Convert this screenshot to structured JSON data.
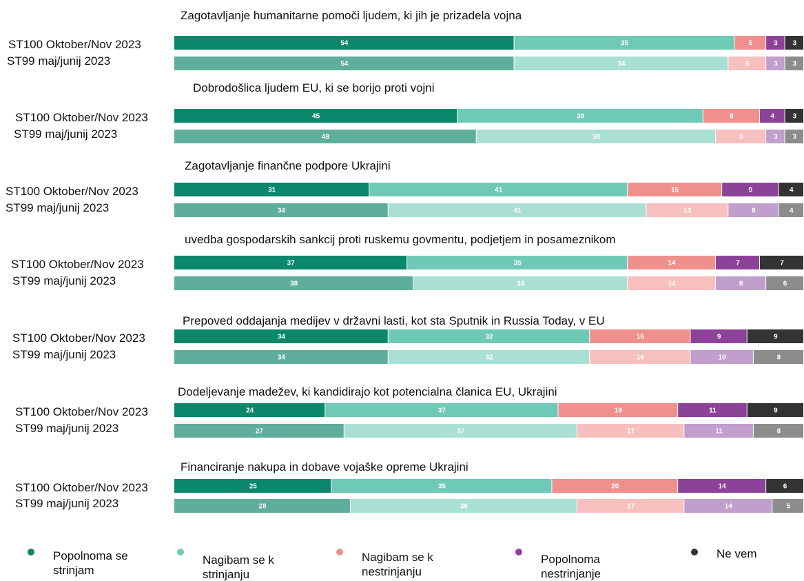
{
  "chart_data": {
    "type": "stacked-bar",
    "xlim": [
      0,
      100
    ],
    "series": [
      {
        "name": "Popolnoma se strinjam",
        "colors": [
          "#0b876b",
          "#5fae9b"
        ]
      },
      {
        "name": "Nagibam se k strinjanju",
        "colors": [
          "#6fc9b7",
          "#aadfd4"
        ]
      },
      {
        "name": "Nagibam se k nestrinjanju",
        "colors": [
          "#f0908d",
          "#f7bfbe"
        ]
      },
      {
        "name": "Popolnoma nestrinjanje",
        "colors": [
          "#8d4299",
          "#c09fcd"
        ]
      },
      {
        "name": "Ne vem",
        "colors": [
          "#333333",
          "#8c8c8c"
        ]
      }
    ],
    "groups": [
      {
        "title": "Zagotavljanje humanitarne pomoči ljudem, ki jih je prizadela vojna",
        "rows": [
          {
            "label": "ST100 Oktober/Nov 2023",
            "values": [
              54,
              35,
              5,
              3,
              3
            ]
          },
          {
            "label": "ST99 maj/junij 2023",
            "values": [
              54,
              34,
              6,
              3,
              3
            ]
          }
        ]
      },
      {
        "title": "Dobrodošlica ljudem EU, ki se borijo proti vojni",
        "rows": [
          {
            "label": "ST100 Oktober/Nov 2023",
            "values": [
              45,
              39,
              9,
              4,
              3
            ]
          },
          {
            "label": "ST99 maj/junij 2023",
            "values": [
              48,
              38,
              8,
              3,
              3
            ]
          }
        ]
      },
      {
        "title": "Zagotavljanje finančne podpore Ukrajini",
        "rows": [
          {
            "label": "ST100 Oktober/Nov 2023",
            "values": [
              31,
              41,
              15,
              9,
              4
            ]
          },
          {
            "label": "ST99 maj/junij 2023",
            "values": [
              34,
              41,
              13,
              8,
              4
            ]
          }
        ]
      },
      {
        "title": "uvedba gospodarskih sankcij proti ruskemu govmentu, podjetjem in posameznikom",
        "rows": [
          {
            "label": "ST100 Oktober/Nov 2023",
            "values": [
              37,
              35,
              14,
              7,
              7
            ]
          },
          {
            "label": "ST99 maj/junij 2023",
            "values": [
              38,
              34,
              14,
              8,
              6
            ]
          }
        ]
      },
      {
        "title": "Prepoved oddajanja medijev v državni lasti, kot sta Sputnik in Russia Today, v EU",
        "rows": [
          {
            "label": "ST100 Oktober/Nov 2023",
            "values": [
              34,
              32,
              16,
              9,
              9
            ]
          },
          {
            "label": "ST99 maj/junij 2023",
            "values": [
              34,
              32,
              16,
              10,
              8
            ]
          }
        ]
      },
      {
        "title": "Dodeljevanje madežev, ki kandidirajo kot potencialna članica EU, Ukrajini",
        "rows": [
          {
            "label": "ST100 Oktober/Nov 2023",
            "values": [
              24,
              37,
              19,
              11,
              9
            ]
          },
          {
            "label": "ST99 maj/junij 2023",
            "values": [
              27,
              37,
              17,
              11,
              8
            ]
          }
        ]
      },
      {
        "title": "Financiranje nakupa in dobave vojaške opreme Ukrajini",
        "rows": [
          {
            "label": "ST100 Oktober/Nov 2023",
            "values": [
              25,
              35,
              20,
              14,
              6
            ]
          },
          {
            "label": "ST99 maj/junij 2023",
            "values": [
              28,
              36,
              17,
              14,
              5
            ]
          }
        ]
      }
    ]
  }
}
